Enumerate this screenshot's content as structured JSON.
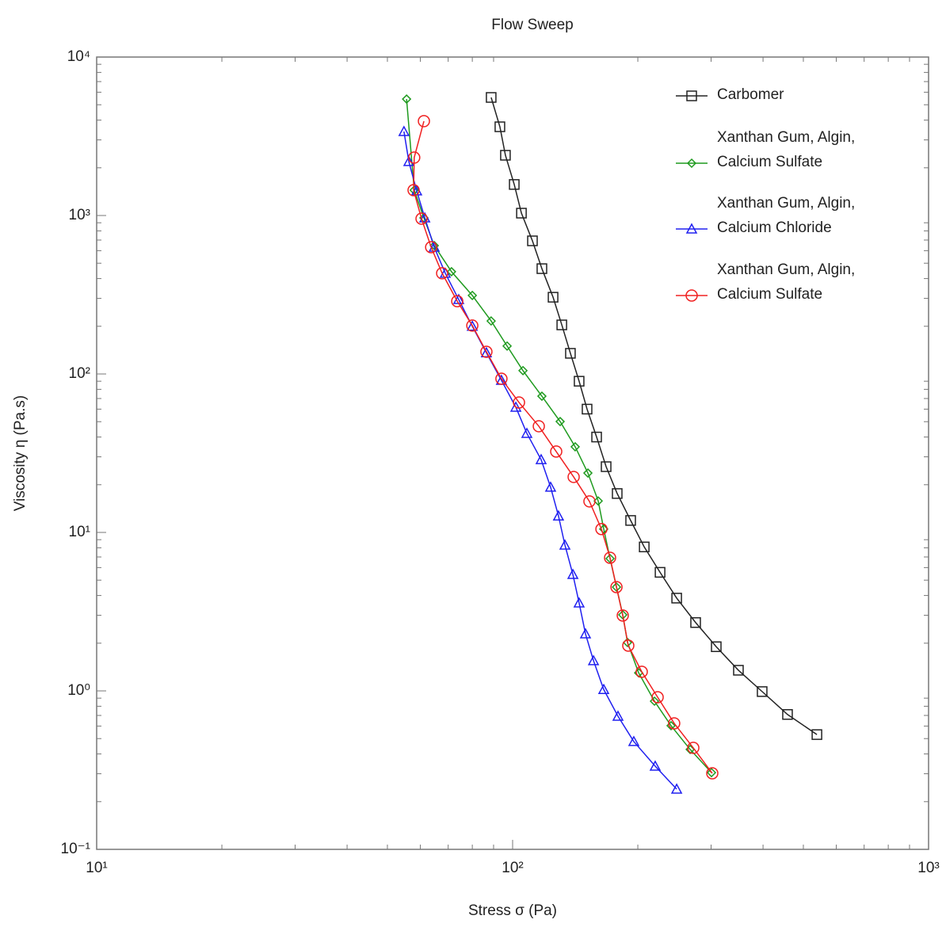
{
  "chart_data": {
    "type": "line",
    "title": "Flow Sweep",
    "xlabel": "Stress σ  (Pa)",
    "ylabel": "Viscosity η  (Pa.s)",
    "xscale": "log",
    "yscale": "log",
    "xlim": [
      10,
      1000
    ],
    "ylim": [
      0.1,
      10000
    ],
    "xticks": [
      {
        "value": 10,
        "label": "10¹"
      },
      {
        "value": 100,
        "label": "10²"
      },
      {
        "value": 1000,
        "label": "10³"
      }
    ],
    "yticks": [
      {
        "value": 0.1,
        "label": "10⁻¹"
      },
      {
        "value": 1,
        "label": "10⁰"
      },
      {
        "value": 10,
        "label": "10¹"
      },
      {
        "value": 100,
        "label": "10²"
      },
      {
        "value": 1000,
        "label": "10³"
      },
      {
        "value": 10000,
        "label": "10⁴"
      }
    ],
    "legend": "upper right",
    "series": [
      {
        "name": "Carbomer",
        "color": "#222222",
        "marker": "square",
        "x": [
          88.8,
          93.2,
          96.1,
          100.9,
          105,
          111.6,
          117.6,
          125.1,
          131.3,
          137.7,
          144.5,
          151.0,
          159.2,
          167.8,
          178.4,
          192.2,
          207.2,
          226.2,
          248,
          275.4,
          308.7,
          349,
          398,
          458,
          539
        ],
        "values": [
          5560,
          3630,
          2400,
          1570,
          1035,
          692,
          462,
          305,
          204,
          135,
          90,
          60,
          40,
          26,
          17.6,
          11.9,
          8.1,
          5.6,
          3.85,
          2.7,
          1.9,
          1.35,
          0.99,
          0.71,
          0.53
        ]
      },
      {
        "name": "Xanthan Gum, Algin,\nCalcium Sulfate",
        "color": "#1e9a1e",
        "marker": "diamond",
        "x": [
          55.6,
          58.0,
          61.2,
          64.8,
          71.3,
          80.0,
          88.8,
          97.0,
          105.9,
          117.6,
          130.1,
          141.4,
          151.7,
          160.6,
          165.6,
          171.5,
          177.7,
          184.0,
          188.9,
          200.9,
          219.3,
          240.4,
          267.2,
          300.7
        ],
        "values": [
          5430,
          1445,
          966,
          646,
          442,
          313,
          216,
          150,
          105,
          72.4,
          50.1,
          34.7,
          23.7,
          15.8,
          10.5,
          6.84,
          4.52,
          3.02,
          2.02,
          1.3,
          0.861,
          0.603,
          0.427,
          0.305
        ]
      },
      {
        "name": "Xanthan Gum, Algin,\nCalcium Chloride",
        "color": "#2020f0",
        "marker": "triangle",
        "x": [
          54.8,
          56.3,
          58.8,
          61.5,
          64.8,
          68.9,
          74.2,
          80.0,
          86.5,
          94.0,
          101.8,
          108.2,
          117.1,
          123.4,
          128.9,
          133.6,
          139.6,
          144.5,
          149.7,
          156.5,
          165.6,
          179.2,
          195.6,
          220.2,
          248.0
        ],
        "values": [
          3390,
          2190,
          1430,
          966,
          631,
          432,
          295,
          200,
          136,
          91.2,
          61.7,
          42.2,
          28.8,
          19.3,
          12.7,
          8.32,
          5.43,
          3.59,
          2.29,
          1.55,
          1.02,
          0.692,
          0.479,
          0.335,
          0.24
        ]
      },
      {
        "name": "Xanthan Gum, Algin,\nCalcium Sulfate",
        "color": "#f02020",
        "marker": "circle",
        "x": [
          61.2,
          58.0,
          57.8,
          60.4,
          63.7,
          67.7,
          73.6,
          80.0,
          86.5,
          94.0,
          103.6,
          115.6,
          127.3,
          140.2,
          153.0,
          163.5,
          171.5,
          177.7,
          184.0,
          189.7,
          204.4,
          223.2,
          244.6,
          271.9,
          302
        ],
        "values": [
          3940,
          2320,
          1445,
          955,
          631,
          432,
          288,
          202,
          138,
          93.3,
          66.1,
          46.8,
          32.4,
          22.4,
          15.7,
          10.5,
          6.92,
          4.52,
          2.99,
          1.93,
          1.32,
          0.912,
          0.624,
          0.437,
          0.302
        ]
      }
    ]
  }
}
